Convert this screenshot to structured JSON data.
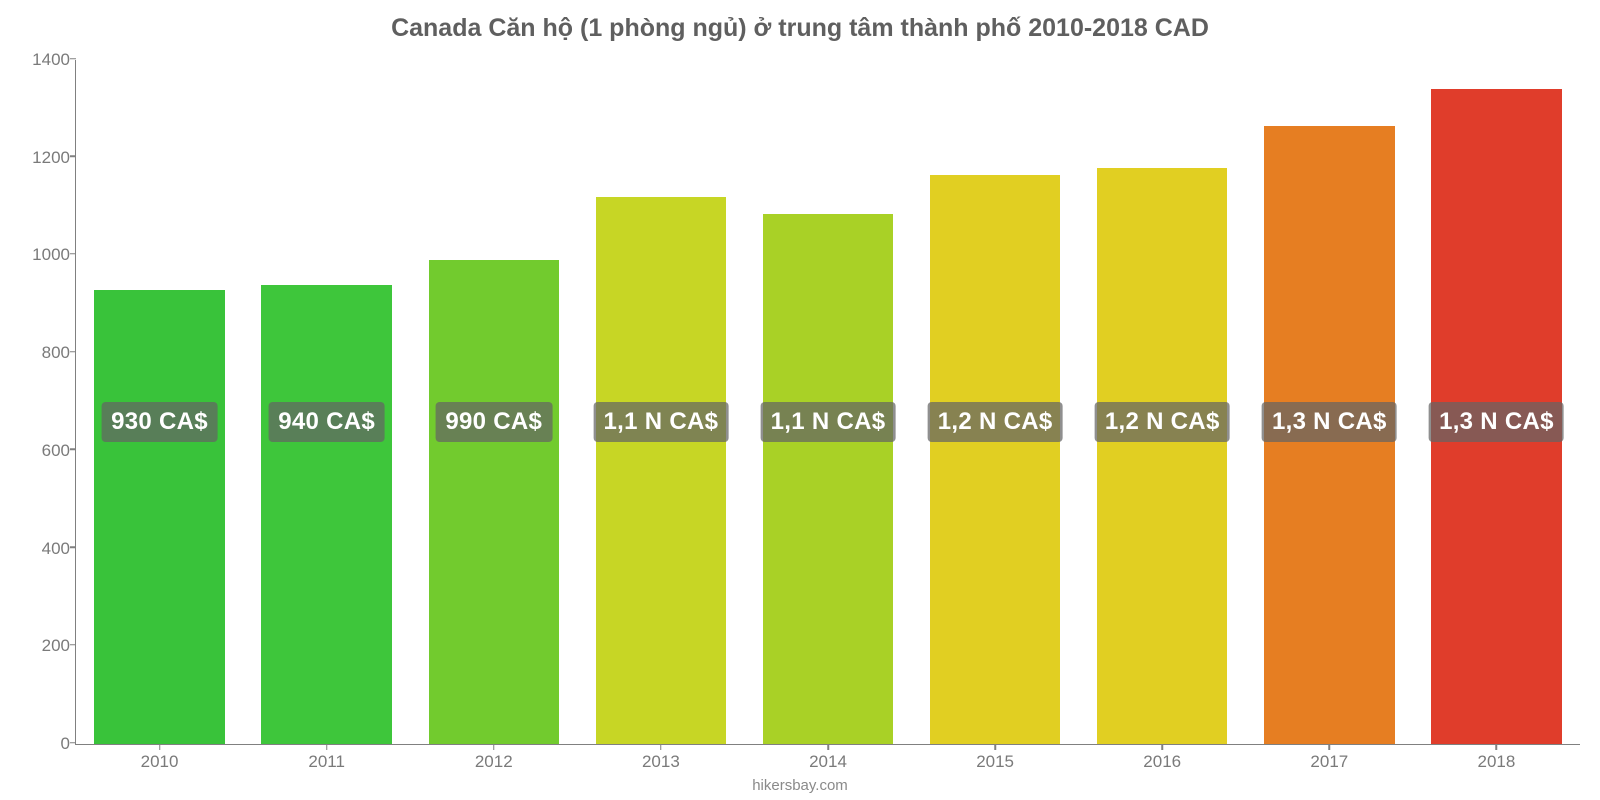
{
  "chart": {
    "type": "bar",
    "title": "Canada Căn hộ (1 phòng ngủ) ở trung tâm thành phố 2010-2018 CAD",
    "title_fontsize": 25,
    "title_color": "#5f5f5f",
    "background_color": "#ffffff",
    "axis_color": "#808080",
    "tick_label_color": "#7a7a7a",
    "tick_fontsize": 17,
    "ylim": [
      0,
      1400
    ],
    "ytick_step": 200,
    "yticks": [
      0,
      200,
      400,
      600,
      800,
      1000,
      1200,
      1400
    ],
    "categories": [
      "2010",
      "2011",
      "2012",
      "2013",
      "2014",
      "2015",
      "2016",
      "2017",
      "2018"
    ],
    "values": [
      930,
      940,
      990,
      1120,
      1085,
      1165,
      1180,
      1265,
      1340
    ],
    "value_labels": [
      "930 CA$",
      "940 CA$",
      "990 CA$",
      "1,1 N CA$",
      "1,1 N CA$",
      "1,2 N CA$",
      "1,2 N CA$",
      "1,3 N CA$",
      "1,3 N CA$"
    ],
    "bar_colors": [
      "#39c33a",
      "#3ec63b",
      "#72cb2e",
      "#c7d625",
      "#a9d126",
      "#e1cf22",
      "#e1cf22",
      "#e67e22",
      "#e03d2b"
    ],
    "bar_width_ratio": 0.78,
    "label_badge_bg": "rgba(100,100,100,0.72)",
    "label_badge_color": "#ffffff",
    "label_badge_fontsize": 24,
    "label_badge_y_value": 660,
    "footer": "hikersbay.com",
    "footer_fontsize": 15,
    "footer_color": "#8a8a8a"
  }
}
